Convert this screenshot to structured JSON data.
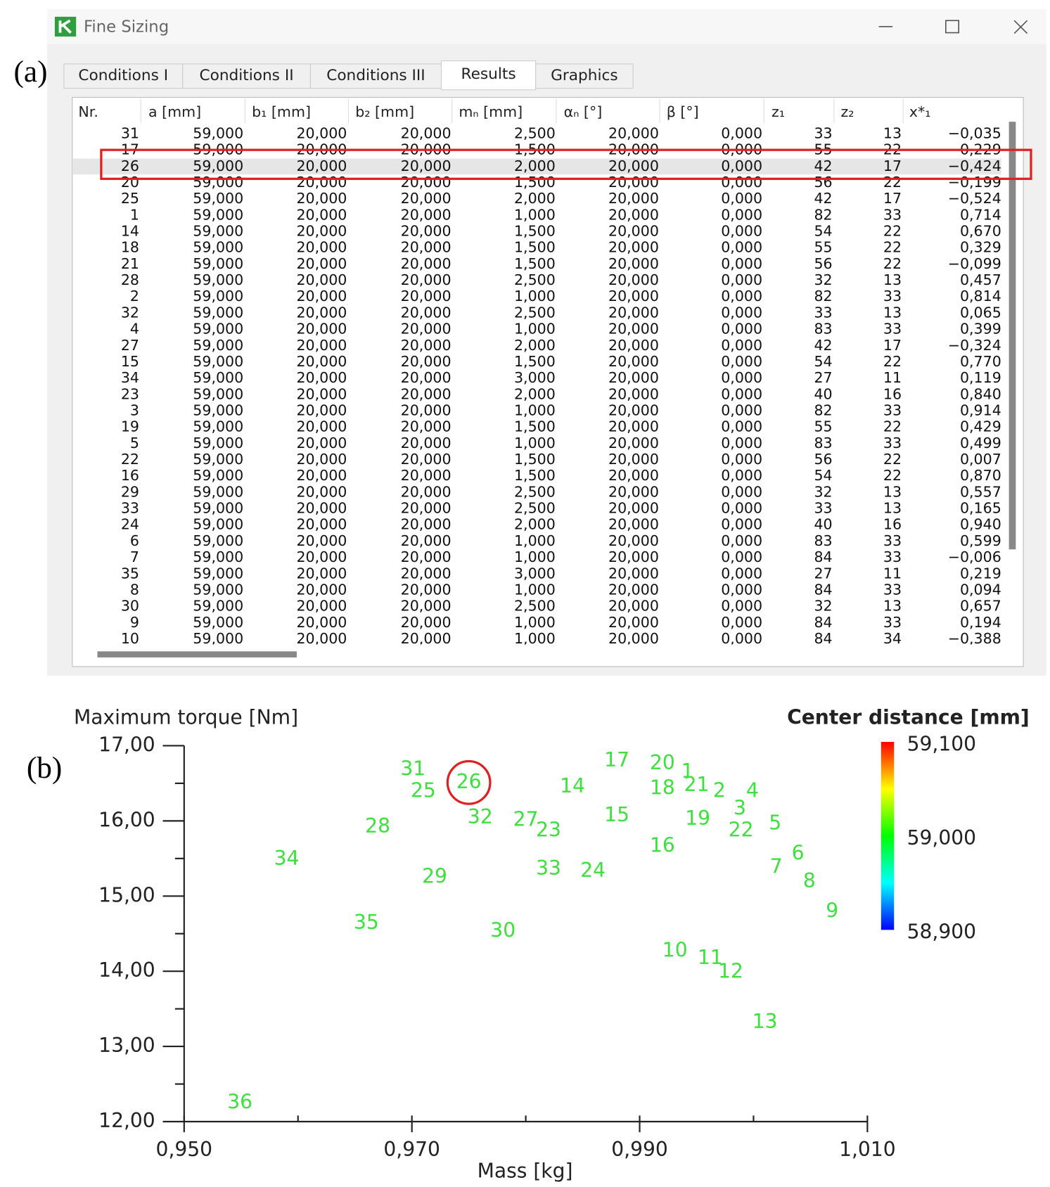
{
  "window": {
    "title": "Fine Sizing"
  },
  "panel_labels": [
    "(a)",
    "(b)"
  ],
  "tabs": [
    "Conditions I",
    "Conditions II",
    "Conditions III",
    "Results",
    "Graphics"
  ],
  "active_tab": 3,
  "table": {
    "columns": [
      "Nr.",
      "a [mm]",
      "b₁ [mm]",
      "b₂ [mm]",
      "mₙ [mm]",
      "αₙ [°]",
      "β [°]",
      "z₁",
      "z₂",
      "x*₁"
    ],
    "highlighted_row": 2,
    "rows": [
      [
        "31",
        "59,000",
        "20,000",
        "20,000",
        "2,500",
        "20,000",
        "0,000",
        "33",
        "13",
        "−0,035"
      ],
      [
        "17",
        "59,000",
        "20,000",
        "20,000",
        "1,500",
        "20,000",
        "0,000",
        "55",
        "22",
        "0,229"
      ],
      [
        "26",
        "59,000",
        "20,000",
        "20,000",
        "2,000",
        "20,000",
        "0,000",
        "42",
        "17",
        "−0,424"
      ],
      [
        "20",
        "59,000",
        "20,000",
        "20,000",
        "1,500",
        "20,000",
        "0,000",
        "56",
        "22",
        "−0,199"
      ],
      [
        "25",
        "59,000",
        "20,000",
        "20,000",
        "2,000",
        "20,000",
        "0,000",
        "42",
        "17",
        "−0,524"
      ],
      [
        "1",
        "59,000",
        "20,000",
        "20,000",
        "1,000",
        "20,000",
        "0,000",
        "82",
        "33",
        "0,714"
      ],
      [
        "14",
        "59,000",
        "20,000",
        "20,000",
        "1,500",
        "20,000",
        "0,000",
        "54",
        "22",
        "0,670"
      ],
      [
        "18",
        "59,000",
        "20,000",
        "20,000",
        "1,500",
        "20,000",
        "0,000",
        "55",
        "22",
        "0,329"
      ],
      [
        "21",
        "59,000",
        "20,000",
        "20,000",
        "1,500",
        "20,000",
        "0,000",
        "56",
        "22",
        "−0,099"
      ],
      [
        "28",
        "59,000",
        "20,000",
        "20,000",
        "2,500",
        "20,000",
        "0,000",
        "32",
        "13",
        "0,457"
      ],
      [
        "2",
        "59,000",
        "20,000",
        "20,000",
        "1,000",
        "20,000",
        "0,000",
        "82",
        "33",
        "0,814"
      ],
      [
        "32",
        "59,000",
        "20,000",
        "20,000",
        "2,500",
        "20,000",
        "0,000",
        "33",
        "13",
        "0,065"
      ],
      [
        "4",
        "59,000",
        "20,000",
        "20,000",
        "1,000",
        "20,000",
        "0,000",
        "83",
        "33",
        "0,399"
      ],
      [
        "27",
        "59,000",
        "20,000",
        "20,000",
        "2,000",
        "20,000",
        "0,000",
        "42",
        "17",
        "−0,324"
      ],
      [
        "15",
        "59,000",
        "20,000",
        "20,000",
        "1,500",
        "20,000",
        "0,000",
        "54",
        "22",
        "0,770"
      ],
      [
        "34",
        "59,000",
        "20,000",
        "20,000",
        "3,000",
        "20,000",
        "0,000",
        "27",
        "11",
        "0,119"
      ],
      [
        "23",
        "59,000",
        "20,000",
        "20,000",
        "2,000",
        "20,000",
        "0,000",
        "40",
        "16",
        "0,840"
      ],
      [
        "3",
        "59,000",
        "20,000",
        "20,000",
        "1,000",
        "20,000",
        "0,000",
        "82",
        "33",
        "0,914"
      ],
      [
        "19",
        "59,000",
        "20,000",
        "20,000",
        "1,500",
        "20,000",
        "0,000",
        "55",
        "22",
        "0,429"
      ],
      [
        "5",
        "59,000",
        "20,000",
        "20,000",
        "1,000",
        "20,000",
        "0,000",
        "83",
        "33",
        "0,499"
      ],
      [
        "22",
        "59,000",
        "20,000",
        "20,000",
        "1,500",
        "20,000",
        "0,000",
        "56",
        "22",
        "0,007"
      ],
      [
        "16",
        "59,000",
        "20,000",
        "20,000",
        "1,500",
        "20,000",
        "0,000",
        "54",
        "22",
        "0,870"
      ],
      [
        "29",
        "59,000",
        "20,000",
        "20,000",
        "2,500",
        "20,000",
        "0,000",
        "32",
        "13",
        "0,557"
      ],
      [
        "33",
        "59,000",
        "20,000",
        "20,000",
        "2,500",
        "20,000",
        "0,000",
        "33",
        "13",
        "0,165"
      ],
      [
        "24",
        "59,000",
        "20,000",
        "20,000",
        "2,000",
        "20,000",
        "0,000",
        "40",
        "16",
        "0,940"
      ],
      [
        "6",
        "59,000",
        "20,000",
        "20,000",
        "1,000",
        "20,000",
        "0,000",
        "83",
        "33",
        "0,599"
      ],
      [
        "7",
        "59,000",
        "20,000",
        "20,000",
        "1,000",
        "20,000",
        "0,000",
        "84",
        "33",
        "−0,006"
      ],
      [
        "35",
        "59,000",
        "20,000",
        "20,000",
        "3,000",
        "20,000",
        "0,000",
        "27",
        "11",
        "0,219"
      ],
      [
        "8",
        "59,000",
        "20,000",
        "20,000",
        "1,000",
        "20,000",
        "0,000",
        "84",
        "33",
        "0,094"
      ],
      [
        "30",
        "59,000",
        "20,000",
        "20,000",
        "2,500",
        "20,000",
        "0,000",
        "32",
        "13",
        "0,657"
      ],
      [
        "9",
        "59,000",
        "20,000",
        "20,000",
        "1,000",
        "20,000",
        "0,000",
        "84",
        "33",
        "0,194"
      ],
      [
        "10",
        "59,000",
        "20,000",
        "20,000",
        "1,000",
        "20,000",
        "0,000",
        "84",
        "34",
        "−0,388"
      ]
    ]
  },
  "chart_data": {
    "type": "scatter",
    "x_label": "Mass [kg]",
    "y_label": "Maximum torque [Nm]",
    "xlim": [
      0.95,
      1.01
    ],
    "ylim": [
      12,
      17
    ],
    "xticks": [
      {
        "value": 0.95,
        "label": "0,950"
      },
      {
        "value": 0.97,
        "label": "0,970"
      },
      {
        "value": 0.99,
        "label": "0,990"
      },
      {
        "value": 1.01,
        "label": "1,010"
      }
    ],
    "xminorticks": [
      0.96,
      0.98,
      1.0
    ],
    "yticks": [
      {
        "value": 12,
        "label": "12,00"
      },
      {
        "value": 13,
        "label": "13,00"
      },
      {
        "value": 14,
        "label": "14,00"
      },
      {
        "value": 15,
        "label": "15,00"
      },
      {
        "value": 16,
        "label": "16,00"
      },
      {
        "value": 17,
        "label": "17,00"
      }
    ],
    "yminorticks": [
      12.5,
      13.5,
      14.5,
      15.5,
      16.5
    ],
    "highlight": 25,
    "series": [
      {
        "color": "#3ee03e",
        "labels": [
          "1",
          "2",
          "3",
          "4",
          "5",
          "6",
          "7",
          "8",
          "9",
          "10",
          "11",
          "12",
          "13",
          "14",
          "15",
          "16",
          "17",
          "18",
          "19",
          "20",
          "21",
          "22",
          "23",
          "24",
          "25",
          "26",
          "27",
          "28",
          "29",
          "30",
          "31",
          "32",
          "33",
          "34",
          "35",
          "36"
        ],
        "x": [
          0.9942,
          0.997,
          0.9988,
          0.9999,
          1.0019,
          1.0039,
          1.002,
          1.0049,
          1.0069,
          0.9931,
          0.9962,
          0.998,
          1.001,
          0.9841,
          0.988,
          0.992,
          0.988,
          0.992,
          0.9951,
          0.992,
          0.995,
          0.9989,
          0.982,
          0.9859,
          0.971,
          0.975,
          0.98,
          0.967,
          0.972,
          0.978,
          0.9701,
          0.976,
          0.982,
          0.959,
          0.966,
          0.9549
        ],
        "values": [
          16.65,
          16.39,
          16.16,
          16.39,
          15.96,
          15.56,
          15.38,
          15.19,
          14.79,
          14.27,
          14.17,
          13.99,
          13.32,
          16.45,
          16.07,
          15.66,
          16.8,
          16.43,
          16.02,
          16.76,
          16.47,
          15.87,
          15.87,
          15.33,
          16.39,
          16.51,
          16.01,
          15.92,
          15.25,
          14.53,
          16.68,
          16.04,
          15.36,
          15.49,
          14.64,
          12.25
        ]
      }
    ],
    "colorbar": {
      "title": "Center distance [mm]",
      "lim": [
        58.9,
        59.1
      ],
      "ticks": [
        {
          "value": 59.1,
          "label": "59,100"
        },
        {
          "value": 59.0,
          "label": "59,000"
        },
        {
          "value": 58.9,
          "label": "58,900"
        }
      ],
      "colors": [
        "#ff0000",
        "#ffff00",
        "#00ff00",
        "#00ffff",
        "#0000ff"
      ]
    }
  }
}
